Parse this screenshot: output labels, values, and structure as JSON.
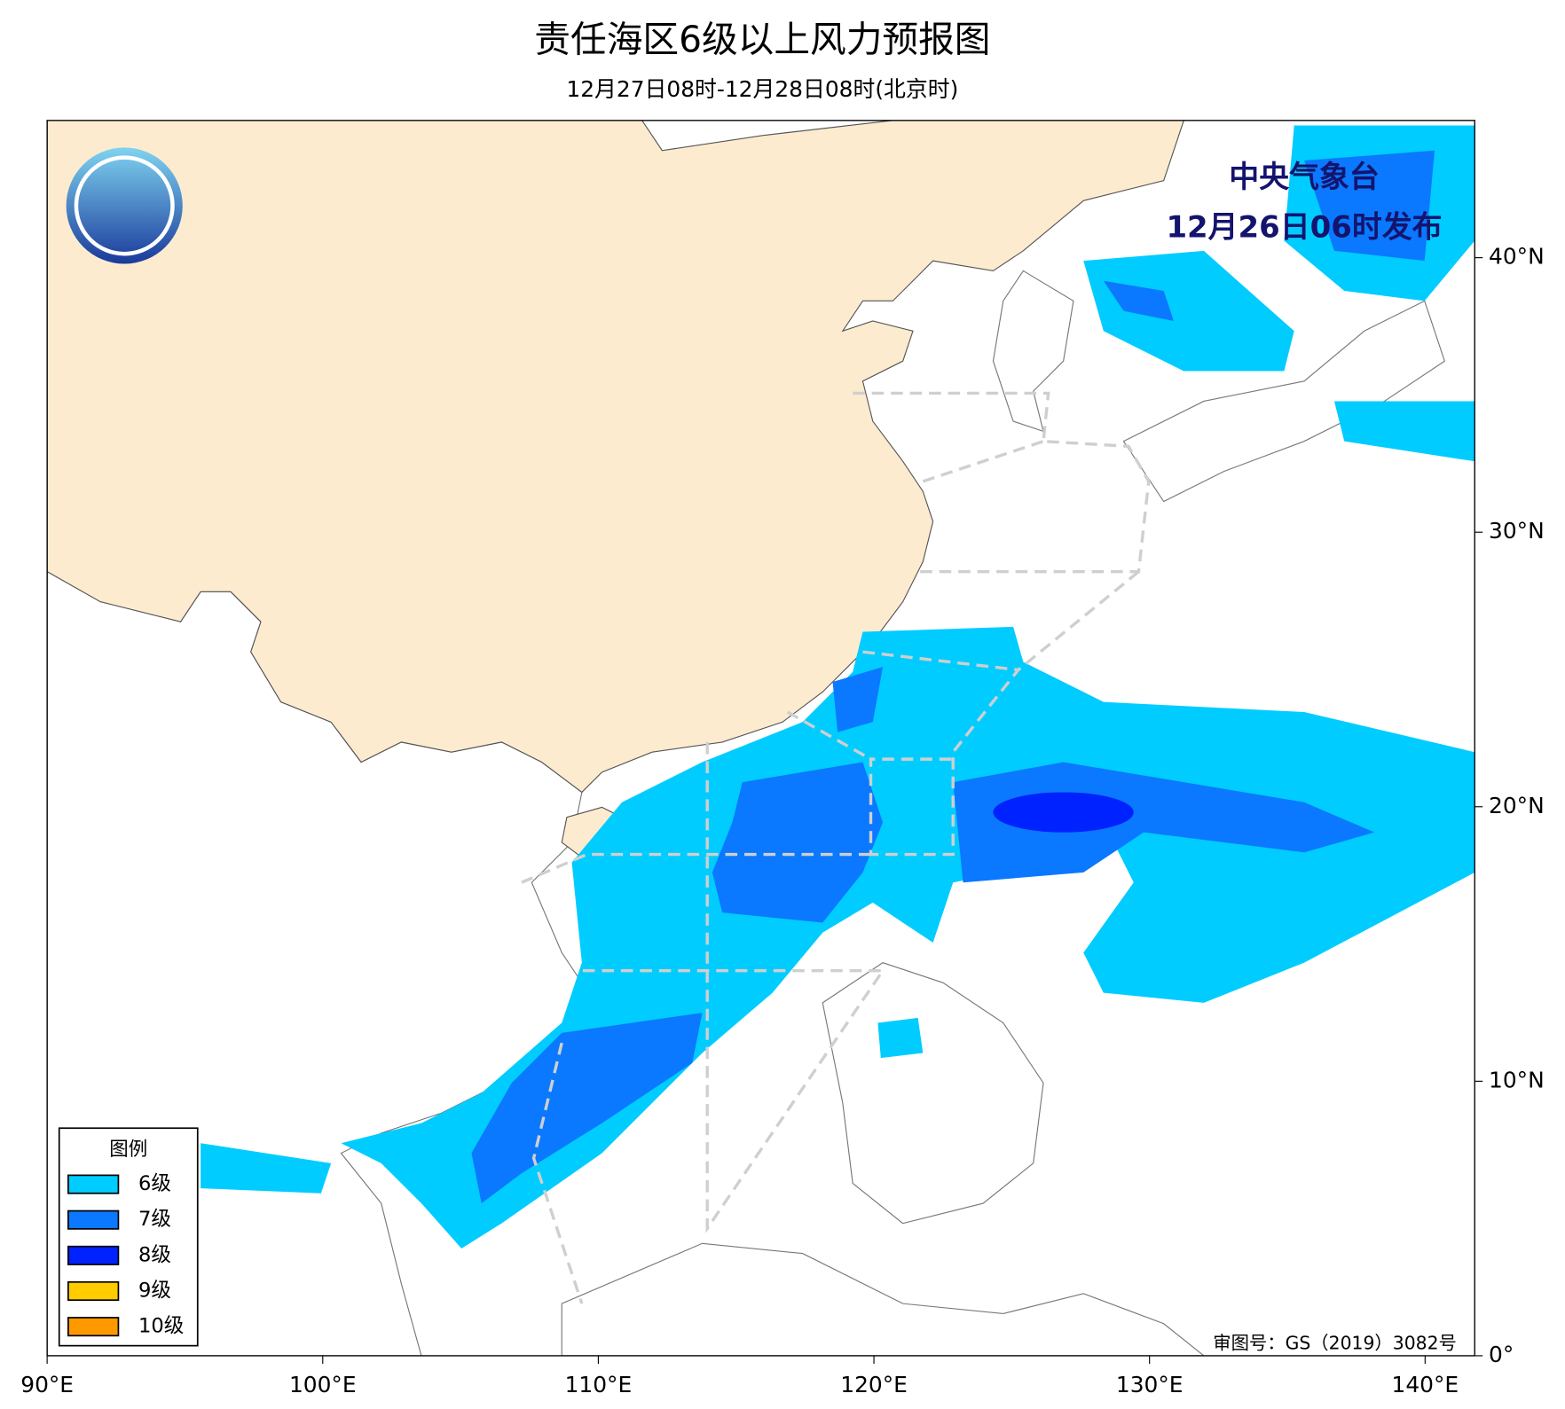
{
  "chart_data": {
    "type": "map",
    "title": "责任海区6级以上风力预报图",
    "subtitle": "12月27日08时-12月28日08时(北京时)",
    "agency": "中央气象台",
    "issued": "12月26日06时发布",
    "approval": "审图号：GS（2019）3082号",
    "xlim": [
      90,
      141.8
    ],
    "ylim": [
      0,
      45
    ],
    "xticks": [
      {
        "value": 90,
        "label": "90°E"
      },
      {
        "value": 100,
        "label": "100°E"
      },
      {
        "value": 110,
        "label": "110°E"
      },
      {
        "value": 120,
        "label": "120°E"
      },
      {
        "value": 130,
        "label": "130°E"
      },
      {
        "value": 140,
        "label": "140°E"
      }
    ],
    "yticks": [
      {
        "value": 0,
        "label": "0°"
      },
      {
        "value": 10,
        "label": "10°N"
      },
      {
        "value": 20,
        "label": "20°N"
      },
      {
        "value": 30,
        "label": "30°N"
      },
      {
        "value": 40,
        "label": "40°N"
      }
    ],
    "legend": {
      "title": "图例",
      "items": [
        {
          "name": "6级",
          "color": "#00ccff"
        },
        {
          "name": "7级",
          "color": "#0a78ff"
        },
        {
          "name": "8级",
          "color": "#0022ff"
        },
        {
          "name": "9级",
          "color": "#ffcc00"
        },
        {
          "name": "10级",
          "color": "#ff9900"
        }
      ]
    }
  }
}
